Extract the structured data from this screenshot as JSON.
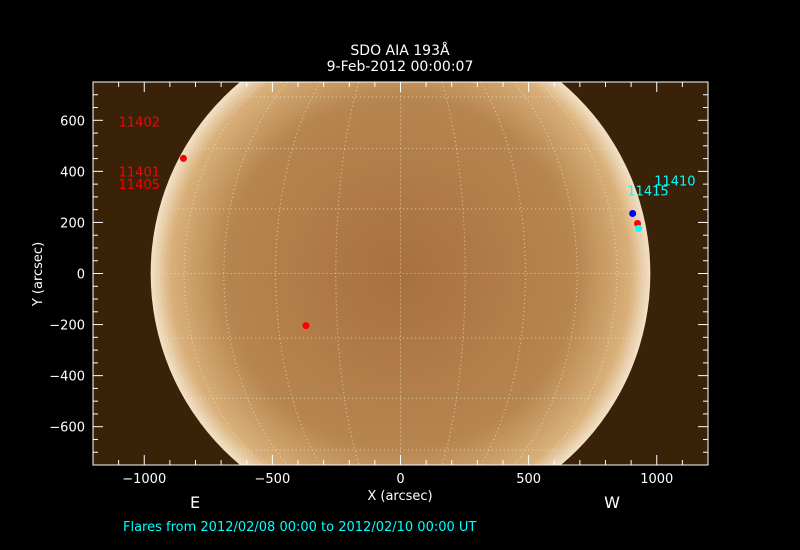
{
  "chart_data": {
    "type": "scatter",
    "title": "SDO AIA 193Å",
    "subtitle": "9-Feb-2012 00:00:07",
    "xlabel": "X (arcsec)",
    "ylabel": "Y (arcsec)",
    "xlim": [
      -1200,
      1200
    ],
    "ylim": [
      -750,
      750
    ],
    "xticks": [
      -1000,
      -500,
      0,
      500,
      1000
    ],
    "yticks": [
      -600,
      -400,
      -200,
      0,
      200,
      400,
      600
    ],
    "grid": "heliographic grid, dotted, 15° spacing",
    "background": "solar disk image (193Å)",
    "solar_radius_arcsec": 975,
    "colors": {
      "disk_center": "#b88855",
      "limb": "#f3e2c8",
      "corona": "#3a2208",
      "red": "#ff0000",
      "blue": "#0000ff",
      "cyan": "#00ffff",
      "annotation": "#00ffff"
    },
    "points": [
      {
        "x": -847,
        "y": 451,
        "color": "red"
      },
      {
        "x": -369,
        "y": -204,
        "color": "red"
      },
      {
        "x": 906,
        "y": 235,
        "color": "blue"
      },
      {
        "x": 925,
        "y": 196,
        "color": "red"
      },
      {
        "x": 929,
        "y": 176,
        "color": "cyan"
      }
    ],
    "region_labels": [
      {
        "text": "11402",
        "x": -1100,
        "y": 575,
        "color": "red"
      },
      {
        "text": "11401",
        "x": -1100,
        "y": 380,
        "color": "red"
      },
      {
        "text": "11405",
        "x": -1100,
        "y": 330,
        "color": "red"
      },
      {
        "text": "11410",
        "x": 990,
        "y": 345,
        "color": "cyan"
      },
      {
        "text": "11415",
        "x": 885,
        "y": 305,
        "color": "cyan"
      }
    ],
    "direction_labels": {
      "east": "E",
      "west": "W"
    },
    "footer": "Flares from 2012/02/08 00:00 to 2012/02/10 00:00 UT"
  }
}
